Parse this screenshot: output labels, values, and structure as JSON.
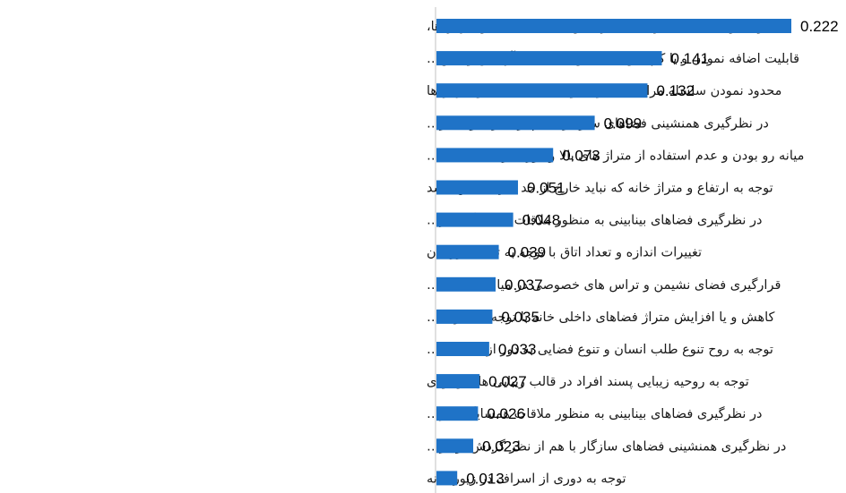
{
  "chart_data": {
    "type": "bar",
    "orientation": "horizontal",
    "categories": [
      "محدود نمودن سلسله مراتب، تغییرات و جابجایی فضاها و کارکردها،",
      "قابلیت اضافه نمودن و یا کم نمودن اتاق و یا فضاهای آرامش والدین…",
      "محدود نمودن سلسله مراتب، تغییرات و جابجایی فضاها و کارکردها",
      "در نظرگیری همنشینی فضاهای سازگار با هم از نظر صوت  هر…",
      "میانه رو بودن و عدم استفاده از متراژ های بالا و دوری از فضاهایی با…",
      "توجه به ارتفاع و متراژ خانه که نباید خارج از حد نیاز ساکنین باشد",
      "در نظرگیری فضاهای بینابینی به منظور ملاقات همسایگان در…",
      "تغییرات اندازه و تعداد اتاق با توجه به تعداد فرزندان",
      "قرارگیری فضای نشیمن و تراس های خصوصی در میانه فضاهای…",
      "کاهش و یا افزایش متراژ فضاهای داخلی خانه با توجه به نیاز به…",
      "توجه به روح تنوع طلب انسان و تنوع فضایی به دور از کسالت،…",
      "توجه به روحیه زیبایی پسند افراد در قالب زیبایی های وجودی",
      "در نظرگیری فضاهای بینابینی به منظور ملاقات همسایگان در…",
      "در نظرگیری همنشینی فضاهای سازگار با هم از نظر گردش بو در…",
      "توجه به دوری از اسراف در زیور خانه"
    ],
    "values": [
      0.222,
      0.141,
      0.132,
      0.099,
      0.073,
      0.051,
      0.048,
      0.039,
      0.037,
      0.035,
      0.033,
      0.027,
      0.026,
      0.023,
      0.013
    ],
    "value_labels": [
      "0.222",
      "0.141",
      "0.132",
      "0.099",
      "0.073",
      "0.051",
      "0.048",
      "0.039",
      "0.037",
      "0.035",
      "0.033",
      "0.027",
      "0.026",
      "0.023",
      "0.013"
    ],
    "xlim": [
      0,
      0.222
    ],
    "bar_color": "#1f73c7",
    "axis_color": "#c0c0c0",
    "grid": false,
    "legend": "none",
    "title": "",
    "xlabel": "",
    "ylabel": ""
  }
}
